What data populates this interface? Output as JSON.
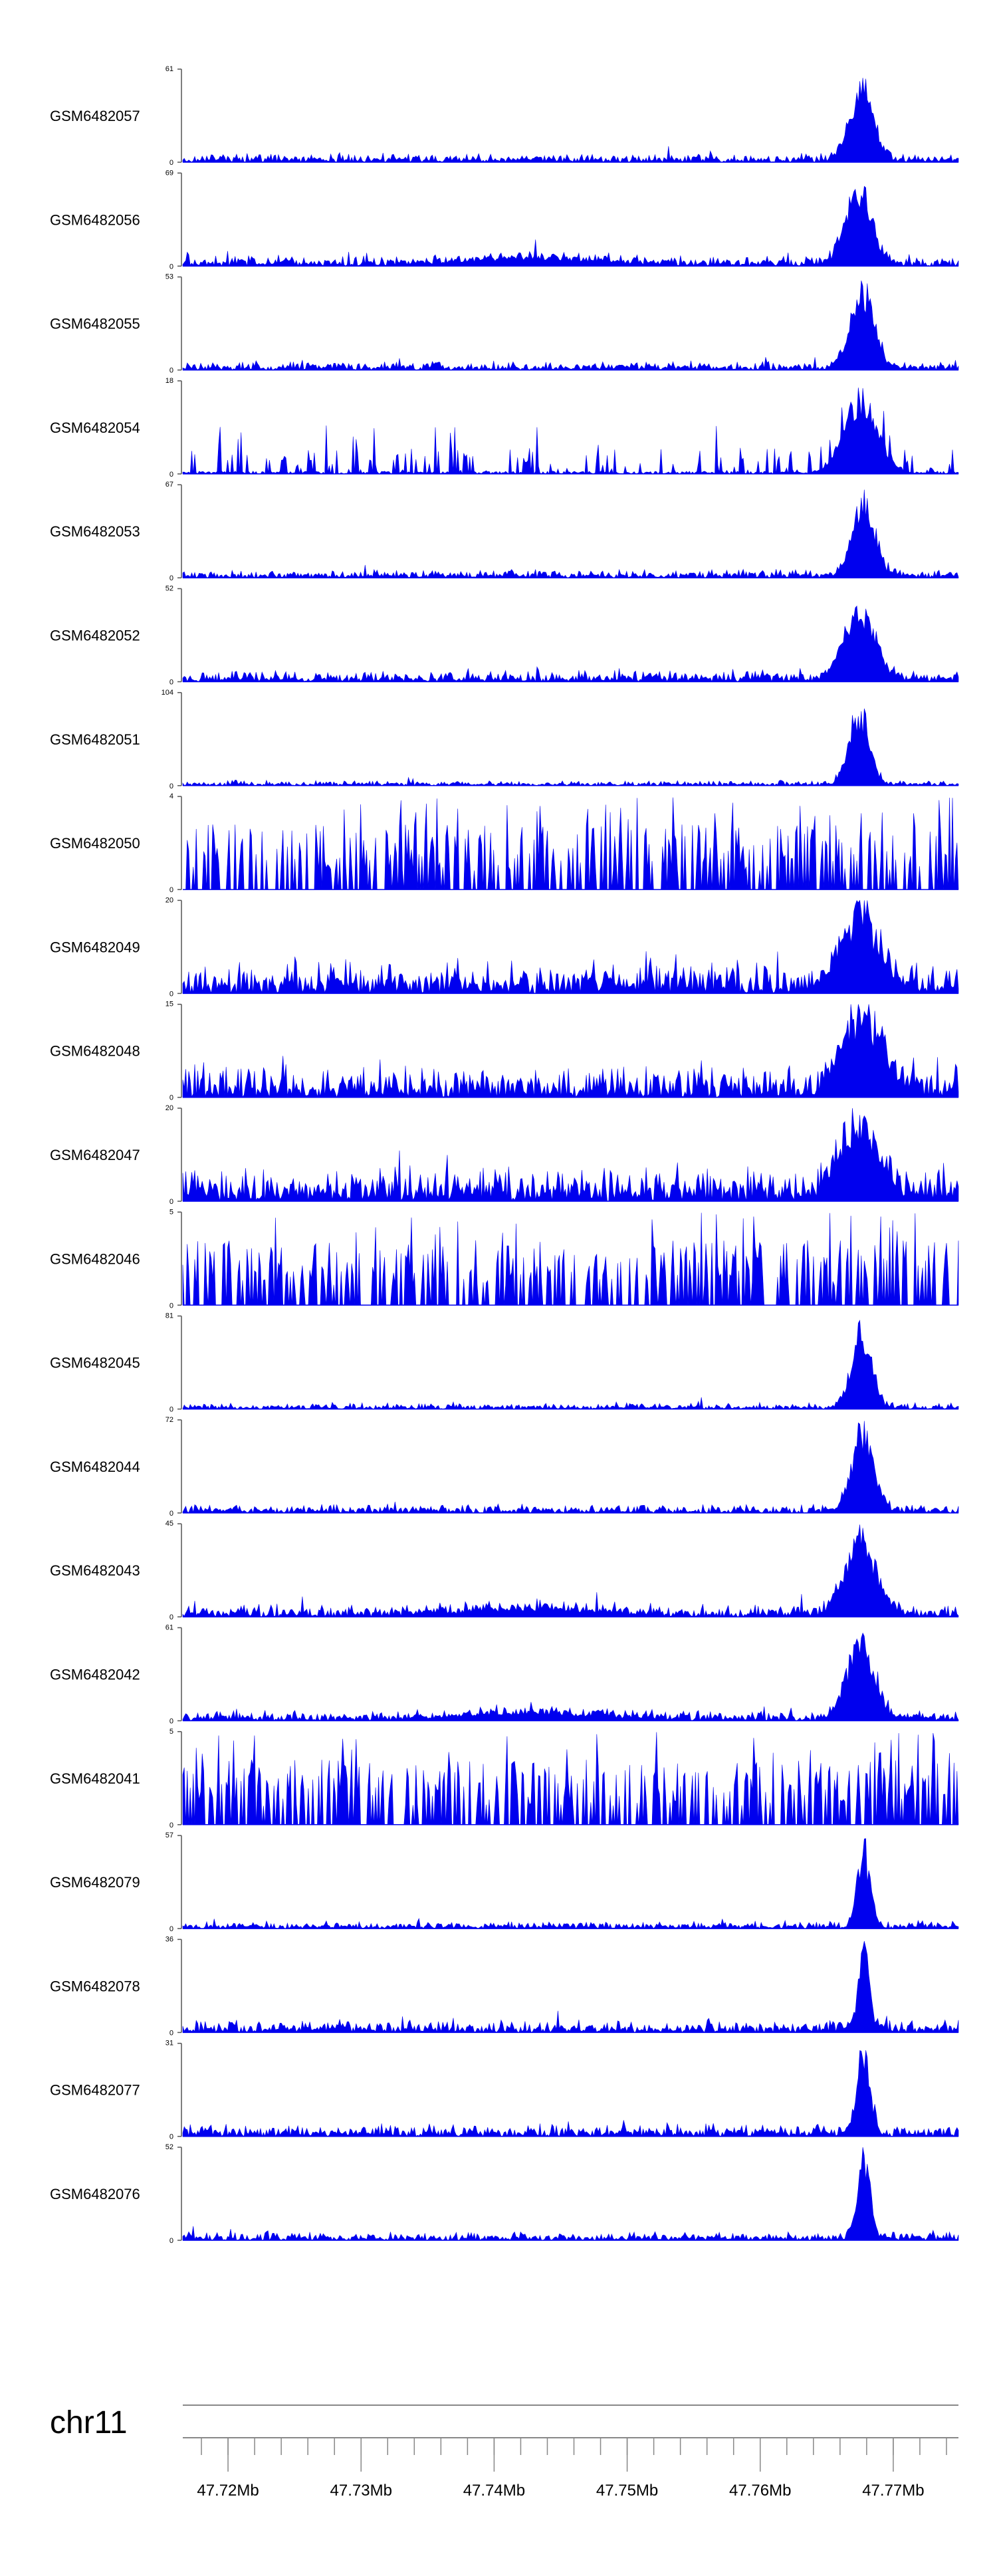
{
  "chart_data": {
    "type": "area",
    "color": "#0000ee",
    "axis_color": "#555555",
    "tracks": [
      {
        "name": "GSM6482057",
        "ymax": 61,
        "ymin": 0,
        "peak": 0.88,
        "base": 0.07,
        "peak_center": 0.875,
        "peak_width": 0.022,
        "style": "peaky"
      },
      {
        "name": "GSM6482056",
        "ymax": 69,
        "ymin": 0,
        "peak": 0.92,
        "base": 0.09,
        "peak_center": 0.872,
        "peak_width": 0.024,
        "style": "broad"
      },
      {
        "name": "GSM6482055",
        "ymax": 53,
        "ymin": 0,
        "peak": 0.95,
        "base": 0.07,
        "peak_center": 0.876,
        "peak_width": 0.022,
        "style": "peaky"
      },
      {
        "name": "GSM6482054",
        "ymax": 18,
        "ymin": 0,
        "peak": 0.95,
        "base": 0.2,
        "peak_center": 0.874,
        "peak_width": 0.03,
        "style": "sparse"
      },
      {
        "name": "GSM6482053",
        "ymax": 67,
        "ymin": 0,
        "peak": 0.95,
        "base": 0.07,
        "peak_center": 0.878,
        "peak_width": 0.02,
        "style": "peaky"
      },
      {
        "name": "GSM6482052",
        "ymax": 52,
        "ymin": 0,
        "peak": 0.9,
        "base": 0.09,
        "peak_center": 0.872,
        "peak_width": 0.028,
        "style": "peaky"
      },
      {
        "name": "GSM6482051",
        "ymax": 104,
        "ymin": 0,
        "peak": 0.95,
        "base": 0.04,
        "peak_center": 0.872,
        "peak_width": 0.018,
        "style": "peaky"
      },
      {
        "name": "GSM6482050",
        "ymax": 4,
        "ymin": 0,
        "peak": 0.5,
        "base": 0.5,
        "peak_center": 0.5,
        "peak_width": 0.0,
        "style": "binary"
      },
      {
        "name": "GSM6482049",
        "ymax": 20,
        "ymin": 0,
        "peak": 0.95,
        "base": 0.28,
        "peak_center": 0.872,
        "peak_width": 0.035,
        "style": "dense"
      },
      {
        "name": "GSM6482048",
        "ymax": 15,
        "ymin": 0,
        "peak": 0.95,
        "base": 0.3,
        "peak_center": 0.876,
        "peak_width": 0.035,
        "style": "dense"
      },
      {
        "name": "GSM6482047",
        "ymax": 20,
        "ymin": 0,
        "peak": 0.85,
        "base": 0.33,
        "peak_center": 0.874,
        "peak_width": 0.035,
        "style": "dense"
      },
      {
        "name": "GSM6482046",
        "ymax": 5,
        "ymin": 0,
        "peak": 0.5,
        "base": 0.5,
        "peak_center": 0.5,
        "peak_width": 0.0,
        "style": "binary"
      },
      {
        "name": "GSM6482045",
        "ymax": 81,
        "ymin": 0,
        "peak": 0.97,
        "base": 0.05,
        "peak_center": 0.875,
        "peak_width": 0.018,
        "style": "peaky"
      },
      {
        "name": "GSM6482044",
        "ymax": 72,
        "ymin": 0,
        "peak": 0.97,
        "base": 0.07,
        "peak_center": 0.877,
        "peak_width": 0.02,
        "style": "peaky"
      },
      {
        "name": "GSM6482043",
        "ymax": 45,
        "ymin": 0,
        "peak": 0.93,
        "base": 0.1,
        "peak_center": 0.874,
        "peak_width": 0.028,
        "style": "broad"
      },
      {
        "name": "GSM6482042",
        "ymax": 61,
        "ymin": 0,
        "peak": 0.95,
        "base": 0.08,
        "peak_center": 0.874,
        "peak_width": 0.025,
        "style": "broad"
      },
      {
        "name": "GSM6482041",
        "ymax": 5,
        "ymin": 0,
        "peak": 0.5,
        "base": 0.5,
        "peak_center": 0.5,
        "peak_width": 0.0,
        "style": "binary"
      },
      {
        "name": "GSM6482079",
        "ymax": 57,
        "ymin": 0,
        "peak": 0.95,
        "base": 0.06,
        "peak_center": 0.878,
        "peak_width": 0.012,
        "style": "sharp"
      },
      {
        "name": "GSM6482078",
        "ymax": 36,
        "ymin": 0,
        "peak": 0.98,
        "base": 0.1,
        "peak_center": 0.878,
        "peak_width": 0.01,
        "style": "sharp"
      },
      {
        "name": "GSM6482077",
        "ymax": 31,
        "ymin": 0,
        "peak": 0.97,
        "base": 0.1,
        "peak_center": 0.878,
        "peak_width": 0.012,
        "style": "sharp"
      },
      {
        "name": "GSM6482076",
        "ymax": 52,
        "ymin": 0,
        "peak": 0.97,
        "base": 0.07,
        "peak_center": 0.878,
        "peak_width": 0.012,
        "style": "sharp"
      }
    ],
    "genome_axis": {
      "chromosome": "chr11",
      "range_mb": [
        47.7166,
        47.7749
      ],
      "major_ticks_mb": [
        47.72,
        47.73,
        47.74,
        47.75,
        47.76,
        47.77
      ],
      "tick_labels": [
        "47.72Mb",
        "47.73Mb",
        "47.74Mb",
        "47.75Mb",
        "47.76Mb",
        "47.77Mb"
      ],
      "minor_step_mb": 0.002
    }
  }
}
